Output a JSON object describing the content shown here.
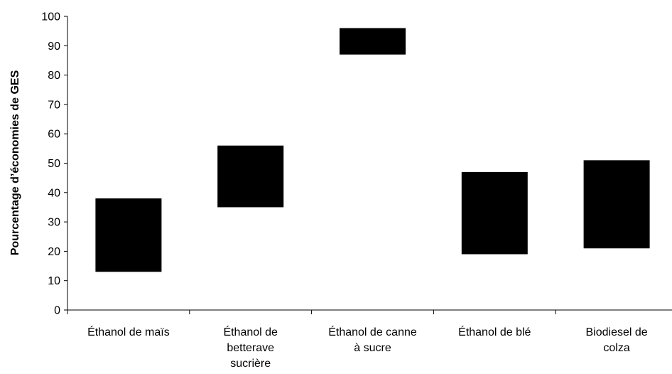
{
  "chart_data": {
    "type": "bar",
    "title": "",
    "xlabel": "",
    "ylabel": "Pourcentage d’économies de GES",
    "ylim": [
      0,
      100
    ],
    "yticks": [
      0,
      10,
      20,
      30,
      40,
      50,
      60,
      70,
      80,
      90,
      100
    ],
    "grid": false,
    "categories": [
      [
        "Éthanol de maïs"
      ],
      [
        "Éthanol de",
        "betterave",
        "sucrière"
      ],
      [
        "Éthanol de canne",
        "à sucre"
      ],
      [
        "Éthanol de blé"
      ],
      [
        "Biodiesel de",
        "colza"
      ]
    ],
    "series": [
      {
        "low": [
          13,
          35,
          87,
          19,
          21
        ],
        "high": [
          38,
          56,
          96,
          47,
          51
        ]
      }
    ],
    "colors": {
      "bar": "#000000",
      "axis": "#000000"
    }
  }
}
